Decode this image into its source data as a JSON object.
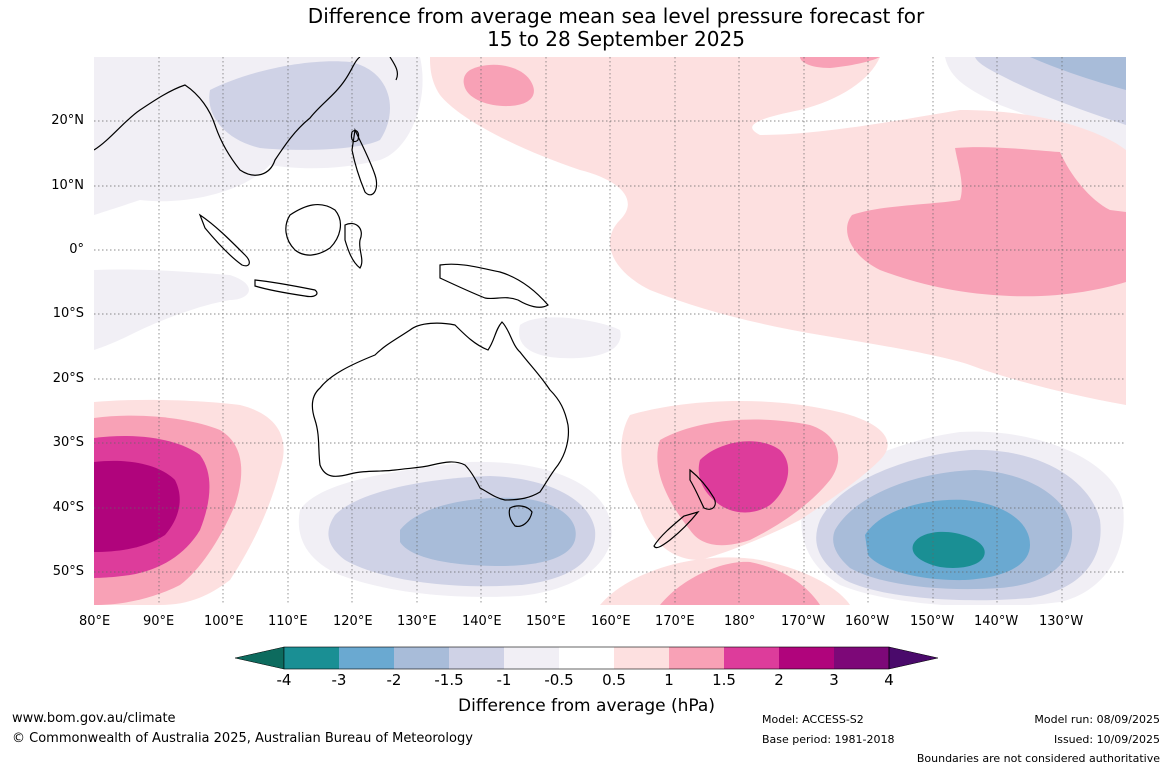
{
  "title_line1": "Difference from average mean sea level pressure forecast for",
  "title_line2": "15 to 28 September 2025",
  "lat_labels": [
    "20°N",
    "10°N",
    "0°",
    "10°S",
    "20°S",
    "30°S",
    "40°S",
    "50°S"
  ],
  "lon_labels": [
    "80°E",
    "90°E",
    "100°E",
    "110°E",
    "120°E",
    "130°E",
    "140°E",
    "150°E",
    "160°E",
    "170°E",
    "180°",
    "170°W",
    "160°W",
    "150°W",
    "140°W",
    "130°W"
  ],
  "colorbar": {
    "labels": [
      "-4",
      "-3",
      "-2",
      "-1.5",
      "-1",
      "-0.5",
      "0.5",
      "1",
      "1.5",
      "2",
      "3",
      "4"
    ],
    "title": "Difference from average (hPa)",
    "colors": {
      "neg4_extend": "#0d6b5e",
      "neg4_neg3": "#1a8f94",
      "neg3_neg2": "#6aa9d1",
      "neg2_neg15": "#a8bcd9",
      "neg15_neg1": "#cfd2e6",
      "neg1_neg05": "#f1eff5",
      "neg05_05": "#ffffff",
      "p05_1": "#fde0e0",
      "p1_15": "#f8a1b6",
      "p15_2": "#dd3c9b",
      "p2_3": "#b0047c",
      "p3_4": "#7d0878",
      "p4_extend": "#4a0a6b"
    }
  },
  "footer": {
    "website": "www.bom.gov.au/climate",
    "copyright": "© Commonwealth of Australia 2025, Australian Bureau of Meteorology",
    "model": "Model: ACCESS-S2",
    "base_period": "Base period: 1981-2018",
    "model_run": "Model run: 08/09/2025",
    "issued": "Issued: 10/09/2025",
    "disclaimer": "Boundaries are not considered authoritative"
  }
}
